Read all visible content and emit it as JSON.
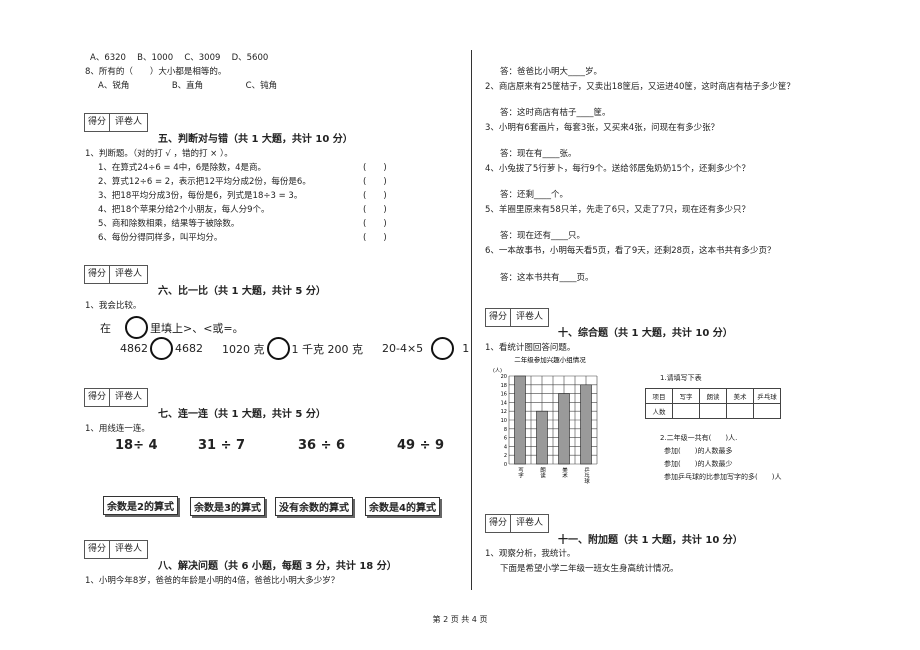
{
  "left_top": {
    "q7_options": "A、6320　 B、1000　 C、3009　 D、5600",
    "q8": "8、所有的（　　）大小都是相等的。",
    "q8_options": "A、锐角　　　　　B、直角　　　　　C、钝角"
  },
  "score_box": {
    "score": "得分",
    "grader": "评卷人"
  },
  "section5": {
    "heading": "五、判断对与错（共 1 大题，共计 10 分）",
    "intro": "1、判断题。（对的打 √ ，错的打 × ）。",
    "blank": "(　　)",
    "items": [
      "1、在算式24÷6 = 4中，6是除数，4是商。",
      "2、算式12÷6 = 2，表示把12平均分成2份，每份是6。",
      "3、把18平均分成3份，每份是6，列式是18÷3 = 3。",
      "4、把18个苹果分给2个小朋友，每人分9个。",
      "5、商和除数相乘，结果等于被除数。",
      "6、每份分得同样多，叫平均分。"
    ]
  },
  "section6": {
    "heading": "六、比一比（共 1 大题，共计 5 分）",
    "intro": "1、我会比较。",
    "instr_before": "在",
    "instr_after": "里填上>、<或=。",
    "pairs": [
      {
        "left": "4862",
        "right": "4682"
      },
      {
        "left": "1020 克",
        "right": "1 千克 200 克"
      },
      {
        "left": "20-4×5",
        "right": "1"
      }
    ]
  },
  "section7": {
    "heading": "七、连一连（共 1 大题，共计 5 分）",
    "intro": "1、用线连一连。",
    "expressions": [
      "18÷ 4",
      "31 ÷ 7",
      "36 ÷ 6",
      "49 ÷ 9"
    ],
    "boxes": [
      "余数是2的算式",
      "余数是3的算式",
      "没有余数的算式",
      "余数是4的算式"
    ]
  },
  "section8": {
    "heading": "八、解决问题（共 6 小题，每题 3 分，共计 18 分）",
    "q1": "1、小明今年8岁，爸爸的年龄是小明的4倍，爸爸比小明大多少岁？"
  },
  "right_top": {
    "lines": [
      "答：爸爸比小明大____岁。",
      "2、商店原来有25筐桔子，又卖出18筐后，又运进40筐，这时商店有桔子多少筐？",
      "答：这时商店有桔子____筐。",
      "3、小明有6套画片，每套3张，又买来4张，问现在有多少张？",
      "答：现在有____张。",
      "4、小兔拔了5行萝卜，每行9个。送给邻居兔奶奶15个，还剩多少个？",
      "答：还剩____个。",
      "5、羊圈里原来有58只羊，先走了6只，又走了7只，现在还有多少只？",
      "答：现在还有____只。",
      "6、一本故事书，小明每天看5页，看了9天，还剩28页，这本书共有多少页？",
      "答：这本书共有____页。"
    ]
  },
  "section10": {
    "heading": "十、综合题（共 1 大题，共计 10 分）",
    "intro": "1、看统计图回答问题。",
    "chart": {
      "type": "bar",
      "title": "二年级参加兴趣小组情况",
      "y_label": "(人)",
      "categories": [
        "写字",
        "朗读",
        "美术",
        "乒乓球"
      ],
      "values": [
        20,
        12,
        16,
        18
      ],
      "color": "#9a9a9a",
      "ylim": [
        0,
        20
      ],
      "yticks": [
        0,
        2,
        4,
        6,
        8,
        10,
        12,
        14,
        16,
        18,
        20
      ],
      "grid": true
    },
    "table_title": "1.请填写下表",
    "table": {
      "header": [
        "项目",
        "写字",
        "朗读",
        "美术",
        "乒乓球"
      ],
      "rows": [
        [
          "人数"
        ]
      ]
    },
    "questions": [
      "2.二年级一共有(　　)人.",
      "参加(　　)的人数最多",
      "参加(　　)的人数最少",
      "参加乒乓球的比参加写字的多(　　)人"
    ]
  },
  "section11": {
    "heading": "十一、附加题（共 1 大题，共计 10 分）",
    "intro": "1、观察分析，我统计。",
    "text": "下面是希望小学二年级一班女生身高统计情况。"
  },
  "footer": "第 2 页 共 4 页"
}
